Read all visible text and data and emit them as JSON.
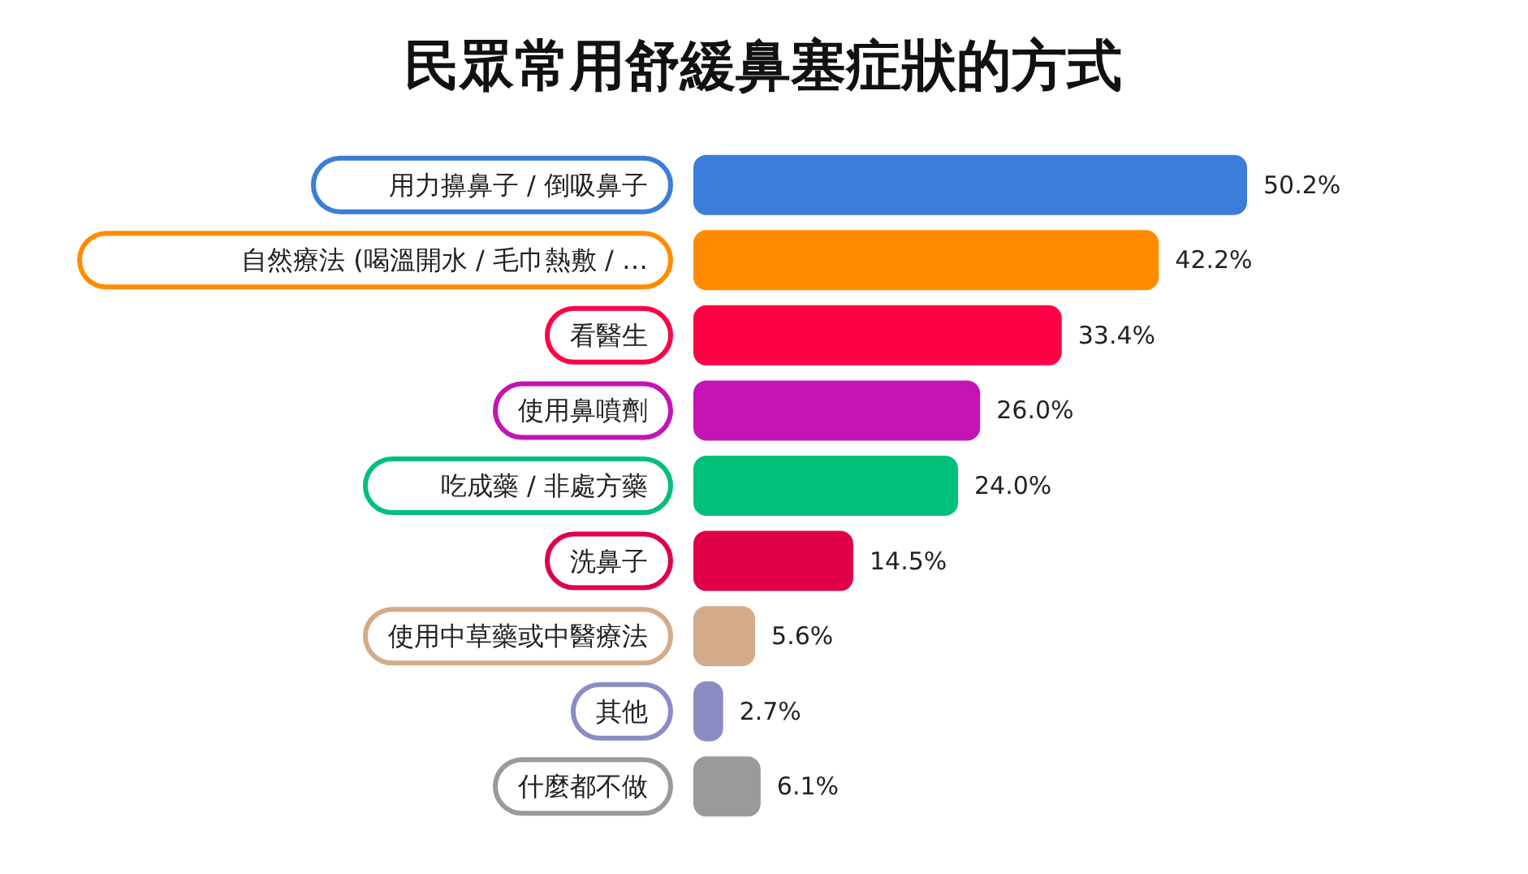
{
  "chart_data": {
    "type": "bar",
    "orientation": "horizontal",
    "title": "民眾常用舒緩鼻塞症狀的方式",
    "categories": [
      "用力擤鼻子 / 倒吸鼻子",
      "自然療法 (喝溫開水 / 毛巾熱敷 / …",
      "看醫生",
      "使用鼻噴劑",
      "吃成藥 / 非處方藥",
      "洗鼻子",
      "使用中草藥或中醫療法",
      "其他",
      "什麼都不做"
    ],
    "values": [
      50.2,
      42.2,
      33.4,
      26.0,
      24.0,
      14.5,
      5.6,
      2.7,
      6.1
    ],
    "value_labels": [
      "50.2%",
      "42.2%",
      "33.4%",
      "26.0%",
      "24.0%",
      "14.5%",
      "5.6%",
      "2.7%",
      "6.1%"
    ],
    "colors": [
      "#3b7dd8",
      "#ff8c00",
      "#ff0044",
      "#c414b4",
      "#00c07a",
      "#e00048",
      "#d4ab8a",
      "#8c8cc4",
      "#9a9a9a"
    ]
  }
}
